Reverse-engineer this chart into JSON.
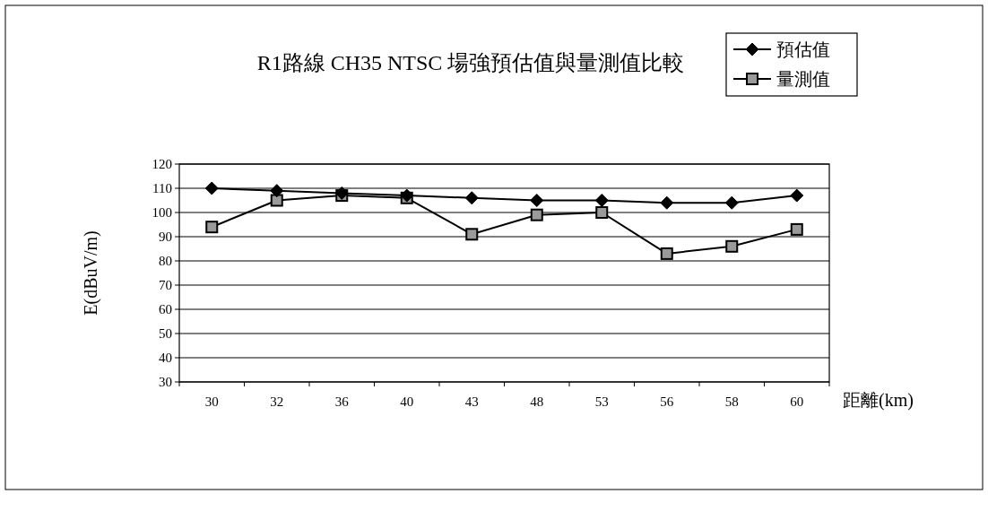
{
  "chart_data": {
    "type": "line",
    "title": "R1路線 CH35 NTSC 場強預估值與量測值比較",
    "xlabel": "距離(km)",
    "ylabel": "E(dBuV/m)",
    "categories": [
      "30",
      "32",
      "36",
      "40",
      "43",
      "48",
      "53",
      "56",
      "58",
      "60"
    ],
    "series": [
      {
        "name": "預估值",
        "color": "#000000",
        "marker": "diamond",
        "values": [
          110,
          109,
          108,
          107,
          106,
          105,
          105,
          104,
          104,
          107
        ]
      },
      {
        "name": "量測值",
        "color": "#000000",
        "marker": "square",
        "values": [
          94,
          105,
          107,
          106,
          91,
          99,
          100,
          83,
          86,
          93
        ]
      }
    ],
    "ylim": [
      30,
      120
    ],
    "yticks": [
      30,
      40,
      50,
      60,
      70,
      80,
      90,
      100,
      110,
      120
    ],
    "grid": "y",
    "legend": "top right"
  }
}
